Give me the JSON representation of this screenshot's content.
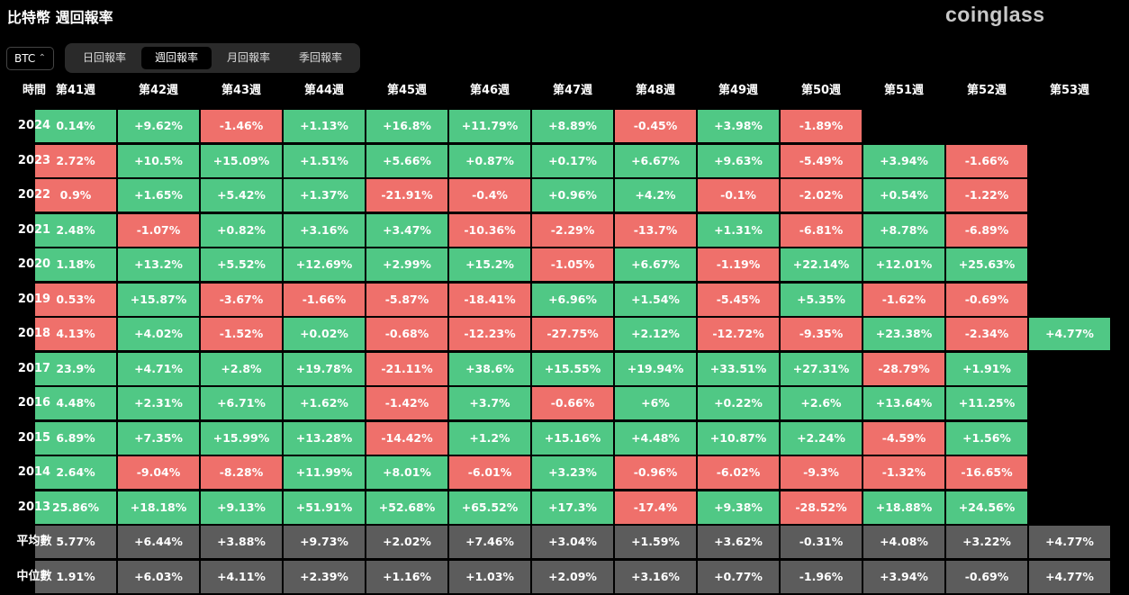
{
  "header": {
    "title": "比特幣 週回報率",
    "brand": "coinglass"
  },
  "controls": {
    "asset": "BTC",
    "tabs": [
      "日回報率",
      "週回報率",
      "月回報率",
      "季回報率"
    ],
    "active_tab": 1
  },
  "palette": {
    "up": "#50c885",
    "down": "#ef706b",
    "summary": "#5c5c5c"
  },
  "table": {
    "corner": "時間",
    "columns": [
      "第41週",
      "第42週",
      "第43週",
      "第44週",
      "第45週",
      "第46週",
      "第47週",
      "第48週",
      "第49週",
      "第50週",
      "第51週",
      "第52週",
      "第53週"
    ],
    "rows": [
      {
        "label": "2024",
        "cells": [
          "0.14%",
          "+9.62%",
          "-1.46%",
          "+1.13%",
          "+16.8%",
          "+11.79%",
          "+8.89%",
          "-0.45%",
          "+3.98%",
          "-1.89%",
          null,
          null,
          null
        ],
        "tones": [
          "up",
          "up",
          "down",
          "up",
          "up",
          "up",
          "up",
          "down",
          "up",
          "down",
          null,
          null,
          null
        ]
      },
      {
        "label": "2023",
        "cells": [
          "2.72%",
          "+10.5%",
          "+15.09%",
          "+1.51%",
          "+5.66%",
          "+0.87%",
          "+0.17%",
          "+6.67%",
          "+9.63%",
          "-5.49%",
          "+3.94%",
          "-1.66%",
          null
        ],
        "tones": [
          "down",
          "up",
          "up",
          "up",
          "up",
          "up",
          "up",
          "up",
          "up",
          "down",
          "up",
          "down",
          null
        ]
      },
      {
        "label": "2022",
        "cells": [
          "0.9%",
          "+1.65%",
          "+5.42%",
          "+1.37%",
          "-21.91%",
          "-0.4%",
          "+0.96%",
          "+4.2%",
          "-0.1%",
          "-2.02%",
          "+0.54%",
          "-1.22%",
          null
        ],
        "tones": [
          "down",
          "up",
          "up",
          "up",
          "down",
          "down",
          "up",
          "up",
          "down",
          "down",
          "up",
          "down",
          null
        ]
      },
      {
        "label": "2021",
        "cells": [
          "2.48%",
          "-1.07%",
          "+0.82%",
          "+3.16%",
          "+3.47%",
          "-10.36%",
          "-2.29%",
          "-13.7%",
          "+1.31%",
          "-6.81%",
          "+8.78%",
          "-6.89%",
          null
        ],
        "tones": [
          "up",
          "down",
          "up",
          "up",
          "up",
          "down",
          "down",
          "down",
          "up",
          "down",
          "up",
          "down",
          null
        ]
      },
      {
        "label": "2020",
        "cells": [
          "1.18%",
          "+13.2%",
          "+5.52%",
          "+12.69%",
          "+2.99%",
          "+15.2%",
          "-1.05%",
          "+6.67%",
          "-1.19%",
          "+22.14%",
          "+12.01%",
          "+25.63%",
          null
        ],
        "tones": [
          "up",
          "up",
          "up",
          "up",
          "up",
          "up",
          "down",
          "up",
          "down",
          "up",
          "up",
          "up",
          null
        ]
      },
      {
        "label": "2019",
        "cells": [
          "0.53%",
          "+15.87%",
          "-3.67%",
          "-1.66%",
          "-5.87%",
          "-18.41%",
          "+6.96%",
          "+1.54%",
          "-5.45%",
          "+5.35%",
          "-1.62%",
          "-0.69%",
          null
        ],
        "tones": [
          "down",
          "up",
          "down",
          "down",
          "down",
          "down",
          "up",
          "up",
          "down",
          "up",
          "down",
          "down",
          null
        ]
      },
      {
        "label": "2018",
        "cells": [
          "4.13%",
          "+4.02%",
          "-1.52%",
          "+0.02%",
          "-0.68%",
          "-12.23%",
          "-27.75%",
          "+2.12%",
          "-12.72%",
          "-9.35%",
          "+23.38%",
          "-2.34%",
          "+4.77%"
        ],
        "tones": [
          "down",
          "up",
          "down",
          "up",
          "down",
          "down",
          "down",
          "up",
          "down",
          "down",
          "up",
          "down",
          "up"
        ]
      },
      {
        "label": "2017",
        "cells": [
          "23.9%",
          "+4.71%",
          "+2.8%",
          "+19.78%",
          "-21.11%",
          "+38.6%",
          "+15.55%",
          "+19.94%",
          "+33.51%",
          "+27.31%",
          "-28.79%",
          "+1.91%",
          null
        ],
        "tones": [
          "up",
          "up",
          "up",
          "up",
          "down",
          "up",
          "up",
          "up",
          "up",
          "up",
          "down",
          "up",
          null
        ]
      },
      {
        "label": "2016",
        "cells": [
          "4.48%",
          "+2.31%",
          "+6.71%",
          "+1.62%",
          "-1.42%",
          "+3.7%",
          "-0.66%",
          "+6%",
          "+0.22%",
          "+2.6%",
          "+13.64%",
          "+11.25%",
          null
        ],
        "tones": [
          "up",
          "up",
          "up",
          "up",
          "down",
          "up",
          "down",
          "up",
          "up",
          "up",
          "up",
          "up",
          null
        ]
      },
      {
        "label": "2015",
        "cells": [
          "6.89%",
          "+7.35%",
          "+15.99%",
          "+13.28%",
          "-14.42%",
          "+1.2%",
          "+15.16%",
          "+4.48%",
          "+10.87%",
          "+2.24%",
          "-4.59%",
          "+1.56%",
          null
        ],
        "tones": [
          "up",
          "up",
          "up",
          "up",
          "down",
          "up",
          "up",
          "up",
          "up",
          "up",
          "down",
          "up",
          null
        ]
      },
      {
        "label": "2014",
        "cells": [
          "2.64%",
          "-9.04%",
          "-8.28%",
          "+11.99%",
          "+8.01%",
          "-6.01%",
          "+3.23%",
          "-0.96%",
          "-6.02%",
          "-9.3%",
          "-1.32%",
          "-16.65%",
          null
        ],
        "tones": [
          "up",
          "down",
          "down",
          "up",
          "up",
          "down",
          "up",
          "down",
          "down",
          "down",
          "down",
          "down",
          null
        ]
      },
      {
        "label": "2013",
        "cells": [
          "25.86%",
          "+18.18%",
          "+9.13%",
          "+51.91%",
          "+52.68%",
          "+65.52%",
          "+17.3%",
          "-17.4%",
          "+9.38%",
          "-28.52%",
          "+18.88%",
          "+24.56%",
          null
        ],
        "tones": [
          "up",
          "up",
          "up",
          "up",
          "up",
          "up",
          "up",
          "down",
          "up",
          "down",
          "up",
          "up",
          null
        ]
      },
      {
        "label": "平均數",
        "cells": [
          "5.77%",
          "+6.44%",
          "+3.88%",
          "+9.73%",
          "+2.02%",
          "+7.46%",
          "+3.04%",
          "+1.59%",
          "+3.62%",
          "-0.31%",
          "+4.08%",
          "+3.22%",
          "+4.77%"
        ],
        "tones": [
          "summary",
          "summary",
          "summary",
          "summary",
          "summary",
          "summary",
          "summary",
          "summary",
          "summary",
          "summary",
          "summary",
          "summary",
          "summary"
        ]
      },
      {
        "label": "中位數",
        "cells": [
          "1.91%",
          "+6.03%",
          "+4.11%",
          "+2.39%",
          "+1.16%",
          "+1.03%",
          "+2.09%",
          "+3.16%",
          "+0.77%",
          "-1.96%",
          "+3.94%",
          "-0.69%",
          "+4.77%"
        ],
        "tones": [
          "summary",
          "summary",
          "summary",
          "summary",
          "summary",
          "summary",
          "summary",
          "summary",
          "summary",
          "summary",
          "summary",
          "summary",
          "summary"
        ]
      }
    ]
  }
}
